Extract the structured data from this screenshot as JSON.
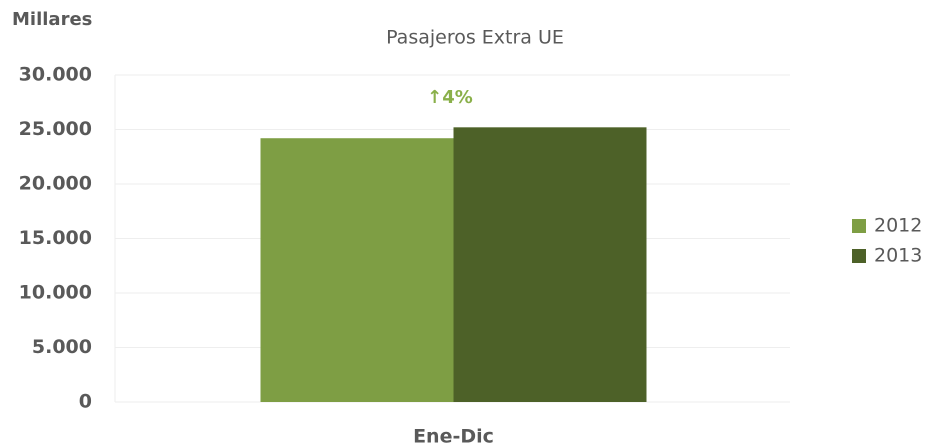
{
  "chart_data": {
    "type": "bar",
    "title": "Pasajeros Extra UE",
    "y_label": "Millares",
    "annotation": "↑4%",
    "categories": [
      "Ene-Dic"
    ],
    "series": [
      {
        "name": "2012",
        "color": "#7e9e44",
        "values": [
          24200
        ]
      },
      {
        "name": "2013",
        "color": "#4d6128",
        "values": [
          25200
        ]
      }
    ],
    "ylim": [
      0,
      30000
    ],
    "yticks": [
      0,
      {
        "value": 5000,
        "label": "5.000"
      },
      {
        "value": 10000,
        "label": "10.000"
      },
      {
        "value": 15000,
        "label": "15.000"
      },
      {
        "value": 20000,
        "label": "20.000"
      },
      {
        "value": 25000,
        "label": "25.000"
      },
      {
        "value": 30000,
        "label": "30.000"
      }
    ],
    "grid": true,
    "legend": "right"
  }
}
